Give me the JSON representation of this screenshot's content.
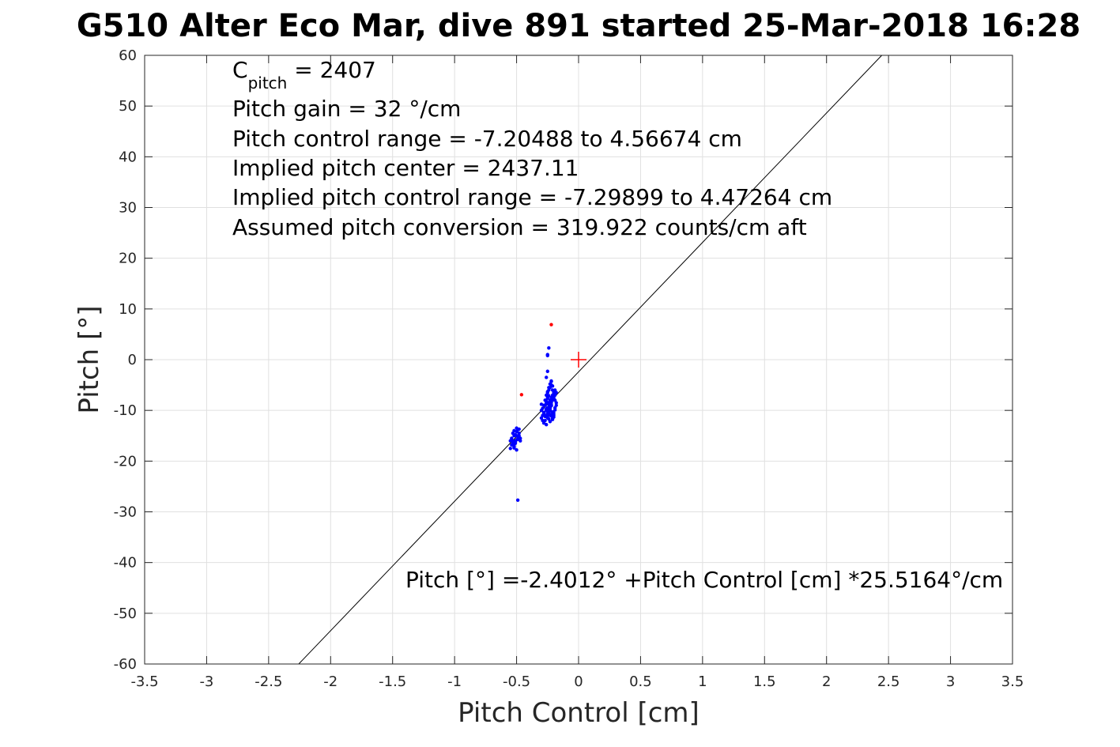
{
  "chart_data": {
    "type": "scatter",
    "title": "G510 Alter Eco Mar, dive 891 started 25-Mar-2018 16:28",
    "xlabel": "Pitch Control [cm]",
    "ylabel": "Pitch [°]",
    "xlim": [
      -3.5,
      3.5
    ],
    "ylim": [
      -60,
      60
    ],
    "xticks": [
      -3.5,
      -3,
      -2.5,
      -2,
      -1.5,
      -1,
      -0.5,
      0,
      0.5,
      1,
      1.5,
      2,
      2.5,
      3,
      3.5
    ],
    "xtick_labels": [
      "-3.5",
      "-3",
      "-2.5",
      "-2",
      "-1.5",
      "-1",
      "-0.5",
      "0",
      "0.5",
      "1",
      "1.5",
      "2",
      "2.5",
      "3",
      "3.5"
    ],
    "yticks": [
      60,
      50,
      40,
      30,
      20,
      10,
      0,
      -10,
      -20,
      -30,
      -40,
      -50,
      -60
    ],
    "ytick_labels": [
      "60",
      "50",
      "40",
      "30",
      "20",
      "10",
      "0",
      "-10",
      "-20",
      "-30",
      "-40",
      "-50",
      "-60"
    ],
    "grid": true,
    "colors": {
      "good": "#0000ff",
      "bad": "#ff0000",
      "fit": "#000000",
      "grid": "#e0e0e0",
      "axis": "#262626"
    },
    "fit_line": {
      "intercept": -2.4012,
      "slope": 25.5164
    },
    "center_marker": {
      "x": 0,
      "y": 0,
      "symbol": "+"
    },
    "series": [
      {
        "marker": "dot",
        "x": [
          -0.54,
          -0.55,
          -0.53,
          -0.52,
          -0.55,
          -0.51,
          -0.5,
          -0.53,
          -0.52,
          -0.49,
          -0.48,
          -0.47,
          -0.47,
          -0.48,
          -0.5,
          -0.51,
          -0.53,
          -0.54,
          -0.52,
          -0.51,
          -0.5,
          -0.49,
          -0.5,
          -0.52,
          -0.53,
          -0.5,
          -0.48,
          -0.49,
          -0.51,
          -0.52,
          -0.49,
          -0.3,
          -0.29,
          -0.28,
          -0.27,
          -0.26,
          -0.25,
          -0.24,
          -0.23,
          -0.22,
          -0.21,
          -0.2,
          -0.19,
          -0.18,
          -0.3,
          -0.29,
          -0.28,
          -0.27,
          -0.26,
          -0.25,
          -0.24,
          -0.23,
          -0.22,
          -0.21,
          -0.2,
          -0.19,
          -0.28,
          -0.27,
          -0.26,
          -0.25,
          -0.24,
          -0.23,
          -0.22,
          -0.21,
          -0.2,
          -0.27,
          -0.26,
          -0.25,
          -0.24,
          -0.23,
          -0.22,
          -0.21,
          -0.2,
          -0.19,
          -0.18,
          -0.26,
          -0.25,
          -0.24,
          -0.23,
          -0.22,
          -0.21,
          -0.2,
          -0.25,
          -0.24,
          -0.23,
          -0.22,
          -0.21,
          -0.2,
          -0.19,
          -0.18,
          -0.3,
          -0.29,
          -0.28,
          -0.27,
          -0.26,
          -0.25,
          -0.24,
          -0.23,
          -0.22,
          -0.21,
          -0.2,
          -0.19,
          -0.24,
          -0.23,
          -0.22,
          -0.21,
          -0.25,
          -0.24,
          -0.23,
          -0.22,
          -0.21,
          -0.2,
          -0.26,
          -0.25,
          -0.24,
          -0.23,
          -0.22,
          -0.21,
          -0.2,
          -0.19,
          -0.25,
          -0.25,
          -0.24,
          -0.25,
          -0.26,
          -0.22
        ],
        "y": [
          -15.5,
          -16,
          -16.5,
          -17,
          -17.5,
          -16,
          -15,
          -14.5,
          -14,
          -13.8,
          -15,
          -16,
          -15.5,
          -14.5,
          -13.5,
          -14.8,
          -16.2,
          -16.8,
          -17.2,
          -16.5,
          -15.8,
          -15.2,
          -17.8,
          -15,
          -16,
          -14.2,
          -13.7,
          -15.7,
          -16.3,
          -17.4,
          -27.7,
          -10,
          -11,
          -10.5,
          -9,
          -8.5,
          -9.5,
          -10,
          -11,
          -9,
          -8,
          -7.5,
          -7,
          -6.5,
          -11.5,
          -12,
          -12.5,
          -11,
          -10,
          -9.5,
          -8.5,
          -8,
          -7.5,
          -7,
          -6.5,
          -6,
          -9,
          -8,
          -7,
          -6.5,
          -6,
          -5.5,
          -5,
          -6,
          -7,
          -12,
          -12.8,
          -11.5,
          -10.5,
          -9.5,
          -8.5,
          -7.8,
          -7.2,
          -8,
          -9,
          -10,
          -11,
          -10.2,
          -9.2,
          -8.2,
          -7.4,
          -6.8,
          -7.3,
          -8.8,
          -9.8,
          -10.8,
          -11.8,
          -10.5,
          -9.5,
          -8.5,
          -8.8,
          -9.6,
          -10.4,
          -11.2,
          -8.2,
          -7.6,
          -9.4,
          -10.1,
          -11.1,
          -11.6,
          -10.9,
          -9.9,
          -5.5,
          -4.8,
          -4.3,
          -5.2,
          -6.3,
          -7.1,
          -8.1,
          -9.1,
          -10.3,
          -11.3,
          -9.7,
          -10.6,
          -11.7,
          -12.2,
          -8.9,
          -7.9,
          -6.9,
          -6.2,
          -2.3,
          1,
          2.3,
          0.8,
          -3.5,
          -4.2
        ],
        "color": "#0000ff"
      },
      {
        "marker": "dot",
        "x": [
          -0.22,
          -0.46
        ],
        "y": [
          6.9,
          -6.9
        ],
        "color": "#ff0000"
      }
    ]
  },
  "annotation": {
    "c_pitch_symbol": "C",
    "c_pitch_sub": "pitch",
    "c_pitch_value": " = 2407",
    "lines": [
      "Pitch gain = 32 °/cm",
      "Pitch control range = -7.20488 to 4.56674 cm",
      "Implied pitch center = 2437.11",
      "Implied pitch control range = -7.29899 to 4.47264 cm",
      "Assumed pitch conversion = 319.922 counts/cm aft"
    ],
    "fit_equation": "Pitch [°] =-2.4012° +Pitch Control [cm] *25.5164°/cm"
  }
}
